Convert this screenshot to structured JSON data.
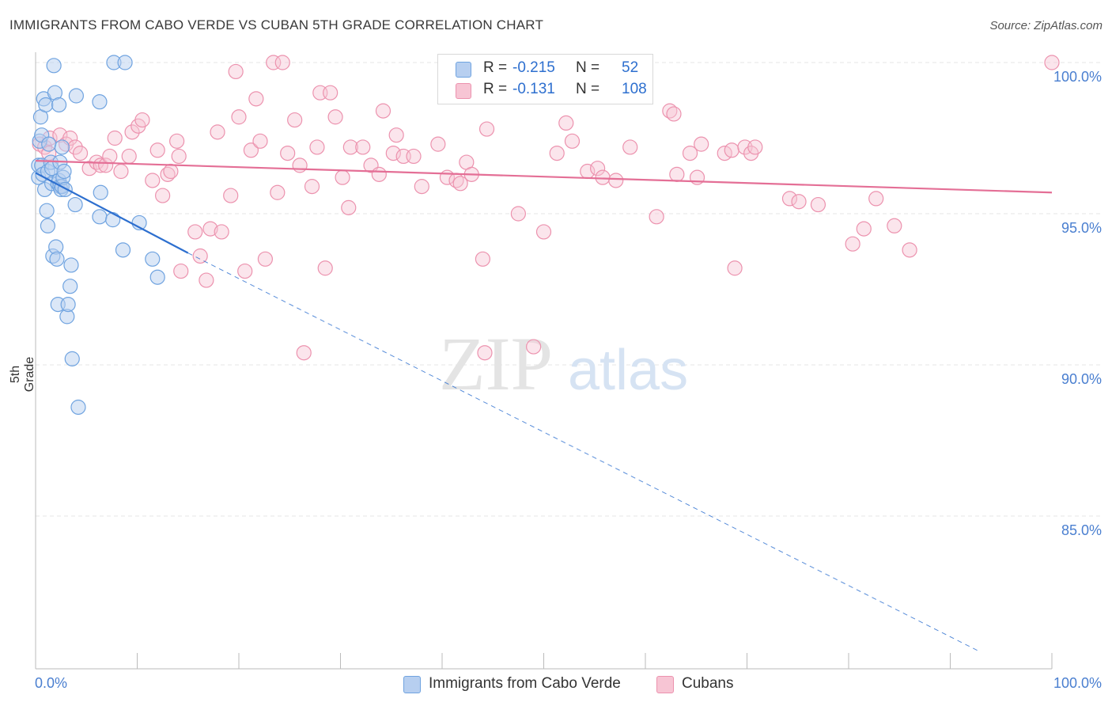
{
  "title": "IMMIGRANTS FROM CABO VERDE VS CUBAN 5TH GRADE CORRELATION CHART",
  "source": "Source: ZipAtlas.com",
  "watermark": {
    "zip": "ZIP",
    "atlas": "atlas"
  },
  "legend": {
    "series1": {
      "r_label": "R =",
      "r_value": "-0.215",
      "n_label": "N =",
      "n_value": "52"
    },
    "series2": {
      "r_label": "R =",
      "r_value": "-0.131",
      "n_label": "N =",
      "n_value": "108"
    }
  },
  "colors": {
    "blue": "#6fa3e0",
    "blue_fill": "#b7cff0",
    "blue_line": "#2d6fcf",
    "pink": "#ec92ae",
    "pink_fill": "#f7c5d4",
    "pink_line": "#e46f96",
    "axis_text": "#4a7fd0",
    "grid": "#e6e6e6"
  },
  "chart_data": {
    "type": "scatter",
    "title": "IMMIGRANTS FROM CABO VERDE VS CUBAN 5TH GRADE CORRELATION CHART",
    "xlabel": "",
    "ylabel": "5th Grade",
    "xlim": [
      0,
      100
    ],
    "ylim": [
      80.5,
      100.8
    ],
    "x_tick_labels": [
      "0.0%",
      "100.0%"
    ],
    "y_ticks": [
      100,
      95,
      90,
      85
    ],
    "y_tick_labels": [
      "100.0%",
      "95.0%",
      "90.0%",
      "85.0%"
    ],
    "grid": true,
    "legend_position": "bottom",
    "series": [
      {
        "name": "Immigrants from Cabo Verde",
        "color": "#6fa3e0",
        "trend": {
          "x0": 0,
          "y0": 96.35,
          "x1": 15.0,
          "y1": 93.7,
          "dashed_to_x": 93,
          "dashed_to_y": 80.5
        },
        "points": [
          [
            0.3,
            96.2
          ],
          [
            0.3,
            96.6
          ],
          [
            0.4,
            97.4
          ],
          [
            0.5,
            98.2
          ],
          [
            0.6,
            97.6
          ],
          [
            0.6,
            96.6
          ],
          [
            0.7,
            96.3
          ],
          [
            0.8,
            98.8
          ],
          [
            0.9,
            95.8
          ],
          [
            1.0,
            98.6
          ],
          [
            1.1,
            95.1
          ],
          [
            1.2,
            94.6
          ],
          [
            1.2,
            96.4
          ],
          [
            1.3,
            97.3
          ],
          [
            1.5,
            96.7
          ],
          [
            1.6,
            96.5
          ],
          [
            1.6,
            96.0
          ],
          [
            1.7,
            93.6
          ],
          [
            1.8,
            99.9
          ],
          [
            1.9,
            99.0
          ],
          [
            2.0,
            93.9
          ],
          [
            2.1,
            93.5
          ],
          [
            2.2,
            92.0
          ],
          [
            2.2,
            96.0
          ],
          [
            2.3,
            98.6
          ],
          [
            2.3,
            96.1
          ],
          [
            2.4,
            95.9
          ],
          [
            2.5,
            95.8
          ],
          [
            2.4,
            96.7
          ],
          [
            2.6,
            95.9
          ],
          [
            2.6,
            97.2
          ],
          [
            2.7,
            96.2
          ],
          [
            2.8,
            96.4
          ],
          [
            2.9,
            95.8
          ],
          [
            3.1,
            91.6
          ],
          [
            3.2,
            92.0
          ],
          [
            3.4,
            92.6
          ],
          [
            3.5,
            93.3
          ],
          [
            3.6,
            90.2
          ],
          [
            3.9,
            95.3
          ],
          [
            4.0,
            98.9
          ],
          [
            4.2,
            88.6
          ],
          [
            6.3,
            98.7
          ],
          [
            6.4,
            95.7
          ],
          [
            6.3,
            94.9
          ],
          [
            7.6,
            94.8
          ],
          [
            7.7,
            100.0
          ],
          [
            8.6,
            93.8
          ],
          [
            8.8,
            100.0
          ],
          [
            10.2,
            94.7
          ],
          [
            11.5,
            93.5
          ],
          [
            12.0,
            92.9
          ]
        ]
      },
      {
        "name": "Cubans",
        "color": "#ec92ae",
        "trend": {
          "x0": 0,
          "y0": 96.75,
          "x1": 100,
          "y1": 95.7
        },
        "points": [
          [
            0.4,
            97.3
          ],
          [
            0.9,
            97.2
          ],
          [
            1.3,
            97.0
          ],
          [
            1.4,
            97.5
          ],
          [
            2.4,
            97.6
          ],
          [
            3.0,
            97.3
          ],
          [
            3.4,
            97.5
          ],
          [
            3.9,
            97.2
          ],
          [
            4.4,
            97.0
          ],
          [
            5.3,
            96.5
          ],
          [
            6.0,
            96.7
          ],
          [
            6.4,
            96.6
          ],
          [
            6.9,
            96.6
          ],
          [
            7.3,
            96.9
          ],
          [
            7.8,
            97.5
          ],
          [
            8.4,
            96.4
          ],
          [
            9.2,
            96.9
          ],
          [
            9.5,
            97.7
          ],
          [
            10.1,
            97.9
          ],
          [
            10.5,
            98.1
          ],
          [
            11.5,
            96.1
          ],
          [
            12.0,
            97.1
          ],
          [
            12.5,
            95.6
          ],
          [
            13.0,
            96.3
          ],
          [
            13.3,
            96.4
          ],
          [
            13.9,
            97.4
          ],
          [
            14.1,
            96.9
          ],
          [
            14.3,
            93.1
          ],
          [
            15.7,
            94.4
          ],
          [
            16.2,
            93.6
          ],
          [
            16.8,
            92.8
          ],
          [
            17.2,
            94.5
          ],
          [
            17.9,
            97.7
          ],
          [
            18.3,
            94.4
          ],
          [
            19.2,
            95.6
          ],
          [
            19.7,
            99.7
          ],
          [
            20.0,
            98.2
          ],
          [
            20.6,
            93.1
          ],
          [
            21.2,
            97.1
          ],
          [
            21.7,
            98.8
          ],
          [
            22.1,
            97.4
          ],
          [
            22.6,
            93.5
          ],
          [
            23.4,
            100.0
          ],
          [
            23.8,
            95.7
          ],
          [
            24.3,
            100.0
          ],
          [
            24.8,
            97.0
          ],
          [
            25.5,
            98.1
          ],
          [
            26.0,
            96.6
          ],
          [
            26.4,
            90.4
          ],
          [
            27.2,
            95.9
          ],
          [
            27.7,
            97.2
          ],
          [
            28.0,
            99.0
          ],
          [
            28.5,
            93.2
          ],
          [
            29.0,
            99.0
          ],
          [
            29.5,
            98.2
          ],
          [
            30.2,
            96.2
          ],
          [
            30.8,
            95.2
          ],
          [
            31.0,
            97.2
          ],
          [
            32.2,
            97.2
          ],
          [
            33.0,
            96.6
          ],
          [
            33.8,
            96.3
          ],
          [
            34.2,
            98.4
          ],
          [
            35.2,
            97.0
          ],
          [
            35.5,
            97.6
          ],
          [
            36.2,
            96.9
          ],
          [
            37.2,
            96.9
          ],
          [
            38.0,
            95.9
          ],
          [
            39.6,
            97.3
          ],
          [
            40.5,
            96.2
          ],
          [
            41.4,
            96.1
          ],
          [
            41.8,
            96.0
          ],
          [
            42.4,
            96.7
          ],
          [
            42.9,
            96.3
          ],
          [
            44.0,
            93.5
          ],
          [
            44.4,
            97.8
          ],
          [
            44.2,
            90.4
          ],
          [
            47.5,
            95.0
          ],
          [
            49.0,
            90.6
          ],
          [
            50.0,
            94.4
          ],
          [
            51.3,
            97.0
          ],
          [
            52.2,
            98.0
          ],
          [
            52.8,
            97.4
          ],
          [
            54.3,
            96.4
          ],
          [
            55.3,
            96.5
          ],
          [
            55.8,
            96.2
          ],
          [
            57.1,
            96.1
          ],
          [
            58.5,
            97.2
          ],
          [
            61.1,
            94.9
          ],
          [
            62.4,
            98.4
          ],
          [
            62.8,
            98.3
          ],
          [
            63.1,
            96.3
          ],
          [
            64.4,
            97.0
          ],
          [
            65.1,
            96.2
          ],
          [
            65.5,
            97.3
          ],
          [
            67.8,
            97.0
          ],
          [
            68.5,
            97.1
          ],
          [
            68.8,
            93.2
          ],
          [
            69.8,
            97.2
          ],
          [
            70.4,
            97.0
          ],
          [
            70.8,
            97.2
          ],
          [
            74.2,
            95.5
          ],
          [
            75.1,
            95.4
          ],
          [
            77.0,
            95.3
          ],
          [
            80.4,
            94.0
          ],
          [
            81.5,
            94.5
          ],
          [
            82.7,
            95.5
          ],
          [
            84.5,
            94.6
          ],
          [
            86.0,
            93.8
          ],
          [
            100.0,
            100.0
          ]
        ]
      }
    ]
  },
  "bottom_legend": {
    "item1": "Immigrants from Cabo Verde",
    "item2": "Cubans"
  }
}
